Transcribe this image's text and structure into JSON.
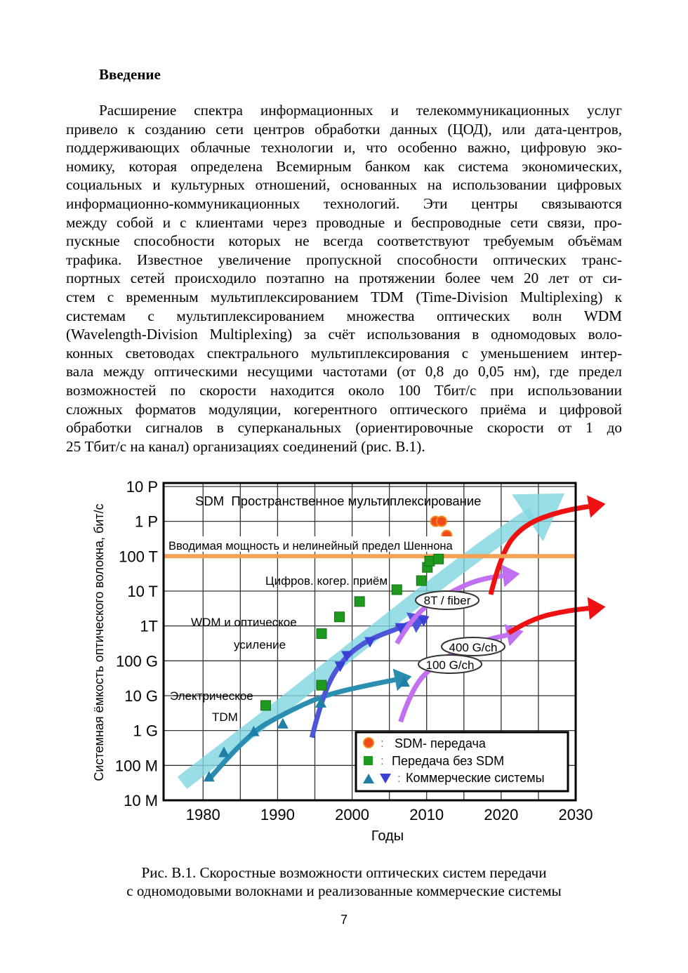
{
  "heading": "Введение",
  "paragraph_lines": [
    "Расширение спектра информационных и телекоммуникационных услуг",
    "привело к созданию сети центров обработки данных (ЦОД), или дата-центров,",
    "поддерживающих облачные технологии и, что особенно важно, цифровую эко-",
    "номику, которая определена Всемирным банком как система экономических,",
    "социальных и культурных отношений, основанных на использовании цифровых",
    "информационно-коммуникационных технологий. Эти центры связываются",
    "между собой и с клиентами через проводные и беспроводные сети связи, про-",
    "пускные способности которых не всегда соответствуют требуемым объёмам",
    "трафика. Известное увеличение пропускной способности оптических транс-",
    "портных сетей происходило поэтапно на протяжении более чем 20 лет от си-",
    "стем с временным мультиплексированием TDM (Time-Division Multiplexing) к",
    "системам с мультиплексированием множества оптических волн WDM",
    "(Wavelength-Division Multiplexing) за счёт использования в одномодовых воло-",
    "конных световодах спектрального мультиплексирования с уменьшением интер-",
    "вала между оптическими несущими частотами (от 0,8 до 0,05 нм), где предел",
    "возможностей по скорости находится около 100 Тбит/с при использовании",
    "сложных форматов модуляции, когерентного оптического приёма и цифровой",
    "обработки сигналов в суперканальных (ориентировочные скорости от 1 до",
    "25 Тбит/с на канал) организациях соединений (рис. В.1)."
  ],
  "chart_data": {
    "type": "scatter",
    "title": "",
    "xlabel": "Годы",
    "ylabel": "Системная ёмкость оптического волокна, бит/с",
    "y_scale": "log10",
    "xlim": [
      1974.7,
      2030
    ],
    "ylim_log10": [
      7,
      16.1
    ],
    "grid": true,
    "x_ticks": [
      1980,
      1990,
      2000,
      2010,
      2020,
      2030
    ],
    "x_tick_labels": [
      "1980",
      "1990",
      "2000",
      "2010",
      "2020",
      "2030"
    ],
    "y_ticks_log10": [
      16,
      15,
      14,
      13,
      12,
      11,
      10,
      9,
      8,
      7
    ],
    "y_tick_labels": [
      "10 P",
      "1 P",
      "100 T",
      "10 T",
      "1T",
      "100 G",
      "10 G",
      "1 G",
      "100 M",
      "10 M"
    ],
    "annotations": {
      "sdm": "SDM  Пространственное мультиплексирование",
      "shannon": "Вводимая мощность и нелинейный предел Шеннона",
      "coherent": "Цифров. когер. приём",
      "wdm1": "WDM и оптическое",
      "wdm2": "усиление",
      "tdm1": "Электрическое",
      "tdm2": "TDM",
      "fiber8t": "8T / fiber",
      "ch400": "400 G/ch",
      "ch100": "100 G/ch"
    },
    "shannon_limit_log10": 14,
    "legend": {
      "placement": "bottom-right",
      "entries": [
        {
          "marker": "circle",
          "colon": ":",
          "label": "SDM- передача"
        },
        {
          "marker": "square",
          "colon": ":",
          "label": "Передача без SDM"
        },
        {
          "marker": "triangles",
          "colon": ":",
          "label": "Коммерческие системы"
        }
      ]
    },
    "series": [
      {
        "name": "SDM- передача",
        "marker": "circle",
        "color": "#f04a1a",
        "points": [
          [
            2011.2,
            15.0
          ],
          [
            2012.0,
            15.0
          ],
          [
            2012.7,
            14.6
          ]
        ]
      },
      {
        "name": "Передача без SDM",
        "marker": "square",
        "color": "#1e9a1e",
        "points": [
          [
            1988.4,
            9.72
          ],
          [
            1995.9,
            10.3
          ],
          [
            1995.9,
            11.78
          ],
          [
            1998.3,
            12.26
          ],
          [
            2001.0,
            12.7
          ],
          [
            2006.0,
            13.04
          ],
          [
            2009.3,
            13.3
          ],
          [
            2010.1,
            13.68
          ],
          [
            2010.4,
            13.86
          ],
          [
            2011.6,
            13.92
          ]
        ]
      },
      {
        "name": "Коммерческие системы TDM",
        "marker": "triangle-up",
        "color": "#1f7fa6",
        "points": [
          [
            1980.8,
            7.68
          ],
          [
            1982.8,
            8.38
          ],
          [
            1986.8,
            8.98
          ],
          [
            1990.7,
            9.2
          ],
          [
            1995.8,
            9.8
          ],
          [
            2007.0,
            10.4
          ]
        ]
      },
      {
        "name": "Коммерческие системы WDM",
        "marker": "triangle-down",
        "color": "#3a3fd6",
        "points": [
          [
            1998.4,
            10.84
          ],
          [
            1999.3,
            11.14
          ],
          [
            2002.4,
            11.54
          ],
          [
            2006.5,
            11.94
          ],
          [
            2009.6,
            12.14
          ]
        ]
      }
    ],
    "trend_arrows": [
      {
        "name": "overall-trend",
        "color": "#7fd6e0",
        "width": 22,
        "points": [
          [
            1977.2,
            7.5
          ],
          [
            1990,
            9.6
          ],
          [
            2000,
            11.3
          ],
          [
            2010,
            13.0
          ],
          [
            2020,
            14.6
          ],
          [
            2028.5,
            15.8
          ]
        ]
      },
      {
        "name": "tdm-trend",
        "color": "#2b8db0",
        "width": 7,
        "points": [
          [
            1980.8,
            7.6
          ],
          [
            1986,
            8.9
          ],
          [
            1991,
            9.5
          ],
          [
            1996,
            10.0
          ],
          [
            2002,
            10.3
          ],
          [
            2008,
            10.55
          ]
        ]
      },
      {
        "name": "wdm-trend",
        "color": "#4d55d8",
        "width": 7,
        "points": [
          [
            1994.6,
            8.8
          ],
          [
            1996,
            10.0
          ],
          [
            1998.5,
            11.0
          ],
          [
            2002,
            11.6
          ],
          [
            2006.5,
            11.95
          ],
          [
            2010,
            12.3
          ]
        ]
      },
      {
        "name": "coherent-trend",
        "color": "#c070f0",
        "width": 7,
        "points": [
          [
            2006,
            11.5
          ],
          [
            2008.5,
            12.4
          ],
          [
            2013,
            12.95
          ],
          [
            2017,
            13.35
          ],
          [
            2022.5,
            13.5
          ]
        ]
      },
      {
        "name": "100g-trend",
        "color": "#c070f0",
        "width": 7,
        "points": [
          [
            2006.5,
            9.25
          ],
          [
            2008,
            10.2
          ],
          [
            2011,
            10.9
          ],
          [
            2016,
            11.5
          ],
          [
            2023,
            11.85
          ]
        ]
      },
      {
        "name": "sdm-trend-1",
        "color": "#ee1111",
        "width": 7,
        "points": [
          [
            2018.6,
            12.9
          ],
          [
            2020,
            14.1
          ],
          [
            2023,
            14.9
          ],
          [
            2028,
            15.3
          ],
          [
            2034,
            15.5
          ]
        ]
      },
      {
        "name": "sdm-trend-2",
        "color": "#ee1111",
        "width": 7,
        "points": [
          [
            2021,
            11.8
          ],
          [
            2024,
            12.2
          ],
          [
            2029,
            12.45
          ],
          [
            2034,
            12.55
          ]
        ]
      }
    ]
  },
  "caption_lines": [
    "Рис. В.1. Скоростные возможности оптических систем передачи",
    "с одномодовыми волокнами и реализованные коммерческие системы"
  ],
  "page_number": "7"
}
